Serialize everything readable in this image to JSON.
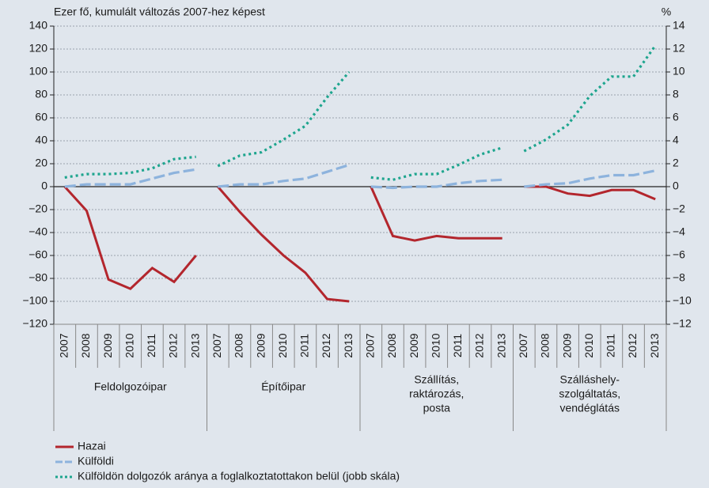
{
  "chart_data": {
    "type": "line",
    "ylabel": "Ezer fő, kumulált változás 2007-hez képest",
    "y2label": "%",
    "groups": [
      {
        "label": [
          "Feldolgozóipar"
        ],
        "categories": [
          "2007",
          "2008",
          "2009",
          "2010",
          "2011",
          "2012",
          "2013"
        ]
      },
      {
        "label": [
          "Építőipar"
        ],
        "categories": [
          "2007",
          "2008",
          "2009",
          "2010",
          "2011",
          "2012",
          "2013"
        ]
      },
      {
        "label": [
          "Szállítás,",
          "raktározás,",
          "posta"
        ],
        "categories": [
          "2007",
          "2008",
          "2009",
          "2010",
          "2011",
          "2012",
          "2013"
        ]
      },
      {
        "label": [
          "Szálláshely-",
          "szolgáltatás,",
          "vendéglátás"
        ],
        "categories": [
          "2007",
          "2008",
          "2009",
          "2010",
          "2011",
          "2012",
          "2013"
        ]
      }
    ],
    "series": [
      {
        "name": "Hazai",
        "color": "#b3262d",
        "style": "solid",
        "values": [
          0,
          -21,
          -81,
          -89,
          -71,
          -83,
          -60,
          0,
          -22,
          -42,
          -60,
          -75,
          -98,
          -100,
          0,
          -43,
          -47,
          -43,
          -45,
          -45,
          -45,
          0,
          0,
          -6,
          -8,
          -3,
          -3,
          -11
        ]
      },
      {
        "name": "Külföldi",
        "color": "#8db3dd",
        "style": "dashed",
        "values": [
          0,
          2,
          2,
          2,
          7,
          12,
          15,
          0,
          2,
          2,
          5,
          7,
          13,
          19,
          0,
          -1,
          0,
          0,
          3,
          5,
          6,
          0,
          2,
          3,
          7,
          10,
          10,
          14
        ]
      },
      {
        "name": "Külföldön dolgozók aránya a foglalkoztatottakon belül (jobb skála)",
        "color": "#1ea58e",
        "style": "dotted",
        "axis": "y2",
        "values": [
          0.8,
          1.1,
          1.1,
          1.2,
          1.6,
          2.4,
          2.6,
          1.8,
          2.7,
          3.0,
          4.1,
          5.3,
          7.8,
          10.0,
          0.8,
          0.6,
          1.1,
          1.1,
          1.9,
          2.8,
          3.4,
          3.1,
          4.1,
          5.4,
          7.9,
          9.6,
          9.6,
          12.3
        ]
      }
    ],
    "ylim": [
      -120,
      140
    ],
    "yticks": [
      140,
      120,
      100,
      80,
      60,
      40,
      20,
      0,
      {
        "value": -20,
        "label": "−20"
      },
      {
        "value": -40,
        "label": "−40"
      },
      {
        "value": -60,
        "label": "−60"
      },
      {
        "value": -80,
        "label": "−80"
      },
      {
        "value": -100,
        "label": "−100"
      },
      {
        "value": -120,
        "label": "−120"
      }
    ],
    "y2lim": [
      -12,
      14
    ],
    "y2ticks": [
      14,
      12,
      10,
      8,
      6,
      4,
      2,
      0,
      {
        "value": -2,
        "label": "−2"
      },
      {
        "value": -4,
        "label": "−4"
      },
      {
        "value": -6,
        "label": "−6"
      },
      {
        "value": -8,
        "label": "−8"
      },
      {
        "value": -10,
        "label": "−10"
      },
      {
        "value": -12,
        "label": "−12"
      }
    ],
    "grid": true
  }
}
